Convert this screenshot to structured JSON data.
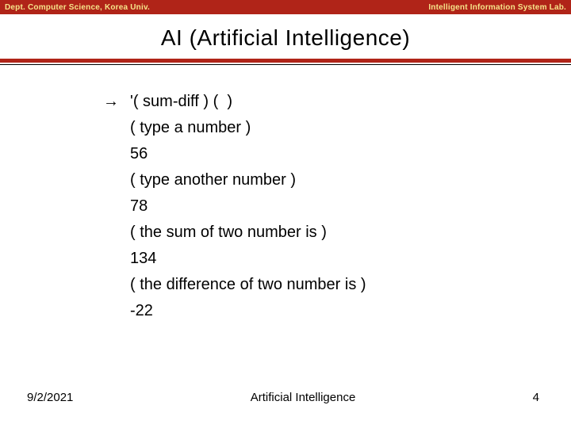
{
  "topbar": {
    "left": "Dept. Computer Science, Korea Univ.",
    "right": "Intelligent Information System Lab.",
    "bg_color": "#b02418",
    "text_color": "#f6e58a"
  },
  "title": "AI (Artificial Intelligence)",
  "rule": {
    "thick_color": "#b02418",
    "thin_color": "#000000"
  },
  "content": {
    "arrow": "→",
    "lines": [
      "'( sum-diff ) (  )",
      "( type a number )",
      "56",
      "( type another number )",
      "78",
      "( the sum of two number is )",
      "134",
      "( the difference of two number is )",
      "-22"
    ]
  },
  "footer": {
    "date": "9/2/2021",
    "center": "Artificial Intelligence",
    "page": "4"
  }
}
